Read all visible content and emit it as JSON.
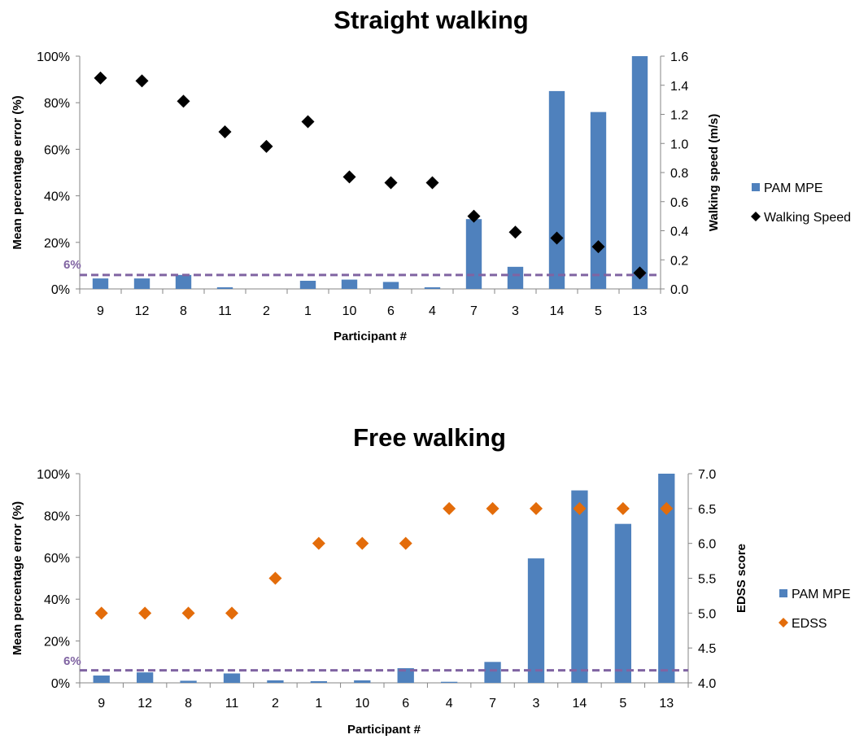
{
  "chart_data": [
    {
      "type": "bar+scatter",
      "title": "Straight walking",
      "xlabel": "Participant #",
      "ylabel": "Mean percentage error (%)",
      "y2label": "Walking speed (m/s)",
      "categories": [
        "9",
        "12",
        "8",
        "11",
        "2",
        "1",
        "10",
        "6",
        "4",
        "7",
        "3",
        "14",
        "5",
        "13"
      ],
      "ylim": [
        0,
        100
      ],
      "yticks": [
        "0%",
        "20%",
        "40%",
        "60%",
        "80%",
        "100%"
      ],
      "y2lim": [
        0,
        1.6
      ],
      "y2ticks": [
        "0.0",
        "0.2",
        "0.4",
        "0.6",
        "0.8",
        "1.0",
        "1.2",
        "1.4",
        "1.6"
      ],
      "series": [
        {
          "name": "PAM MPE",
          "kind": "bar",
          "axis": "left",
          "color": "#4F81BD",
          "values": [
            4.5,
            4.5,
            6,
            0.7,
            0,
            3.5,
            4,
            3,
            0.7,
            30,
            9.5,
            85,
            76,
            100
          ]
        },
        {
          "name": "Walking Speed",
          "kind": "scatter",
          "axis": "right",
          "color": "#000000",
          "marker": "diamond",
          "values": [
            1.45,
            1.43,
            1.29,
            1.08,
            0.98,
            1.15,
            0.77,
            0.73,
            0.73,
            0.5,
            0.39,
            0.35,
            0.29,
            0.11
          ]
        }
      ],
      "reference_line": {
        "value": 6,
        "label": "6%",
        "color": "#8064A2"
      },
      "legend_position": "right"
    },
    {
      "type": "bar+scatter",
      "title": "Free walking",
      "xlabel": "Participant #",
      "ylabel": "Mean percentage error (%)",
      "y2label": "EDSS score",
      "categories": [
        "9",
        "12",
        "8",
        "11",
        "2",
        "1",
        "10",
        "6",
        "4",
        "7",
        "3",
        "14",
        "5",
        "13"
      ],
      "ylim": [
        0,
        100
      ],
      "yticks": [
        "0%",
        "20%",
        "40%",
        "60%",
        "80%",
        "100%"
      ],
      "y2lim": [
        4.0,
        7.0
      ],
      "y2ticks": [
        "4.0",
        "4.5",
        "5.0",
        "5.5",
        "6.0",
        "6.5",
        "7.0"
      ],
      "series": [
        {
          "name": "PAM MPE",
          "kind": "bar",
          "axis": "left",
          "color": "#4F81BD",
          "values": [
            3.5,
            5,
            1,
            4.5,
            1.2,
            0.8,
            1.2,
            7,
            0.5,
            10,
            59.5,
            92,
            76,
            100
          ]
        },
        {
          "name": "EDSS",
          "kind": "scatter",
          "axis": "right",
          "color": "#E36C0A",
          "marker": "diamond",
          "values": [
            5.0,
            5.0,
            5.0,
            5.0,
            5.5,
            6.0,
            6.0,
            6.0,
            6.5,
            6.5,
            6.5,
            6.5,
            6.5,
            6.5
          ]
        }
      ],
      "reference_line": {
        "value": 6,
        "label": "6%",
        "color": "#8064A2"
      },
      "legend_position": "right"
    }
  ]
}
